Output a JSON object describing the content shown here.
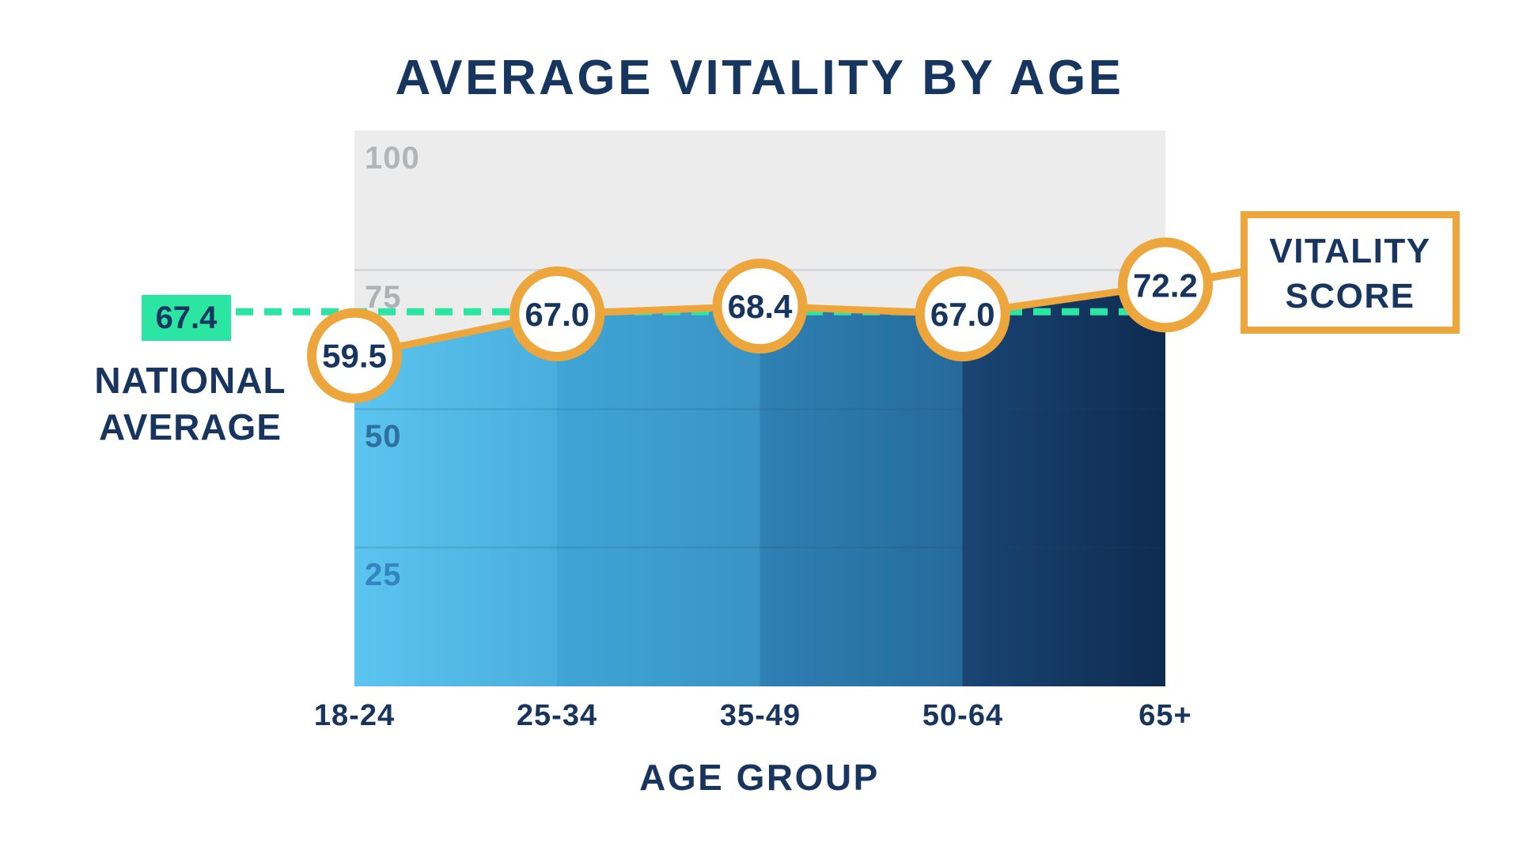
{
  "title": "AVERAGE VITALITY BY AGE",
  "chart_data": {
    "type": "area",
    "categories": [
      "18-24",
      "25-34",
      "35-49",
      "50-64",
      "65+"
    ],
    "values": [
      59.5,
      67.0,
      68.4,
      67.0,
      72.2
    ],
    "value_labels": [
      "59.5",
      "67.0",
      "68.4",
      "67.0",
      "72.2"
    ],
    "series_label": "VITALITY SCORE",
    "title": "AVERAGE VITALITY BY AGE",
    "xlabel": "AGE GROUP",
    "ylabel": "",
    "ylim": [
      0,
      100
    ],
    "grid": true,
    "legend_position": "right-callout",
    "yticks": [
      {
        "label": "100",
        "value": 100,
        "color": "#B2B5B8"
      },
      {
        "label": "75",
        "value": 75,
        "color": "#AFB2B5"
      },
      {
        "label": "50",
        "value": 50,
        "color": "#2F6FA0"
      },
      {
        "label": "25",
        "value": 25,
        "color": "#3384C0"
      }
    ],
    "national_average": {
      "value": 67.4,
      "label": "67.4",
      "caption": "NATIONAL AVERAGE"
    }
  },
  "callout": {
    "label": "VITALITY SCORE"
  },
  "colors": {
    "navy": "#17355E",
    "orange": "#ECA63C",
    "mint": "#2BE6A3",
    "plot_background": "#ECECED",
    "marker_fill": "#FFFFFF",
    "area_stops": [
      [
        0,
        "#5BC4EF"
      ],
      [
        25,
        "#4AAEDC"
      ],
      [
        25,
        "#3FA5D6"
      ],
      [
        50,
        "#3A93C5"
      ],
      [
        50,
        "#2F80B4"
      ],
      [
        75,
        "#266A9B"
      ],
      [
        75,
        "#1A4573"
      ],
      [
        100,
        "#0E2B50"
      ]
    ]
  }
}
